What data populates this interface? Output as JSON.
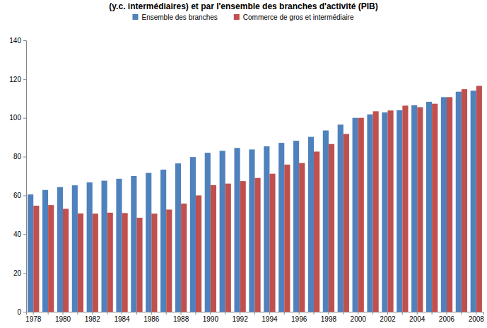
{
  "chart_data": {
    "type": "bar",
    "title": "(y.c. intermédiaires) et par l'ensemble des branches d'activité (PIB)",
    "categories": [
      "1978",
      null,
      "1980",
      null,
      "1982",
      null,
      "1984",
      null,
      "1986",
      null,
      "1988",
      null,
      "1990",
      null,
      "1992",
      null,
      "1994",
      null,
      "1996",
      null,
      "1998",
      null,
      "2000",
      null,
      "2002",
      null,
      "2004",
      null,
      "2006",
      null,
      "2008"
    ],
    "series": [
      {
        "name": "Ensemble des branches",
        "color": "#4f81bd",
        "values": [
          60.5,
          62.8,
          64.3,
          65.2,
          66.7,
          67.6,
          68.6,
          70.0,
          71.6,
          73.3,
          76.5,
          79.8,
          82.0,
          83.0,
          84.5,
          83.7,
          85.3,
          87.1,
          88.2,
          90.2,
          93.5,
          96.5,
          100.0,
          101.8,
          102.8,
          103.9,
          106.5,
          108.3,
          110.7,
          113.5,
          114.0
        ]
      },
      {
        "name": "Commerce de gros et intermédiaire",
        "color": "#c0504d",
        "values": [
          54.7,
          55.0,
          53.1,
          50.7,
          50.6,
          51.1,
          50.9,
          48.5,
          50.6,
          52.7,
          55.8,
          60.0,
          65.3,
          66.1,
          67.4,
          69.0,
          71.2,
          75.9,
          76.7,
          82.6,
          86.5,
          91.7,
          100.0,
          103.4,
          103.8,
          106.3,
          105.5,
          107.3,
          110.7,
          114.8,
          116.5
        ]
      }
    ],
    "ylim": [
      0,
      140
    ],
    "yticks": [
      0,
      20,
      40,
      60,
      80,
      100,
      120,
      140
    ],
    "grid": false,
    "legend": "top"
  }
}
